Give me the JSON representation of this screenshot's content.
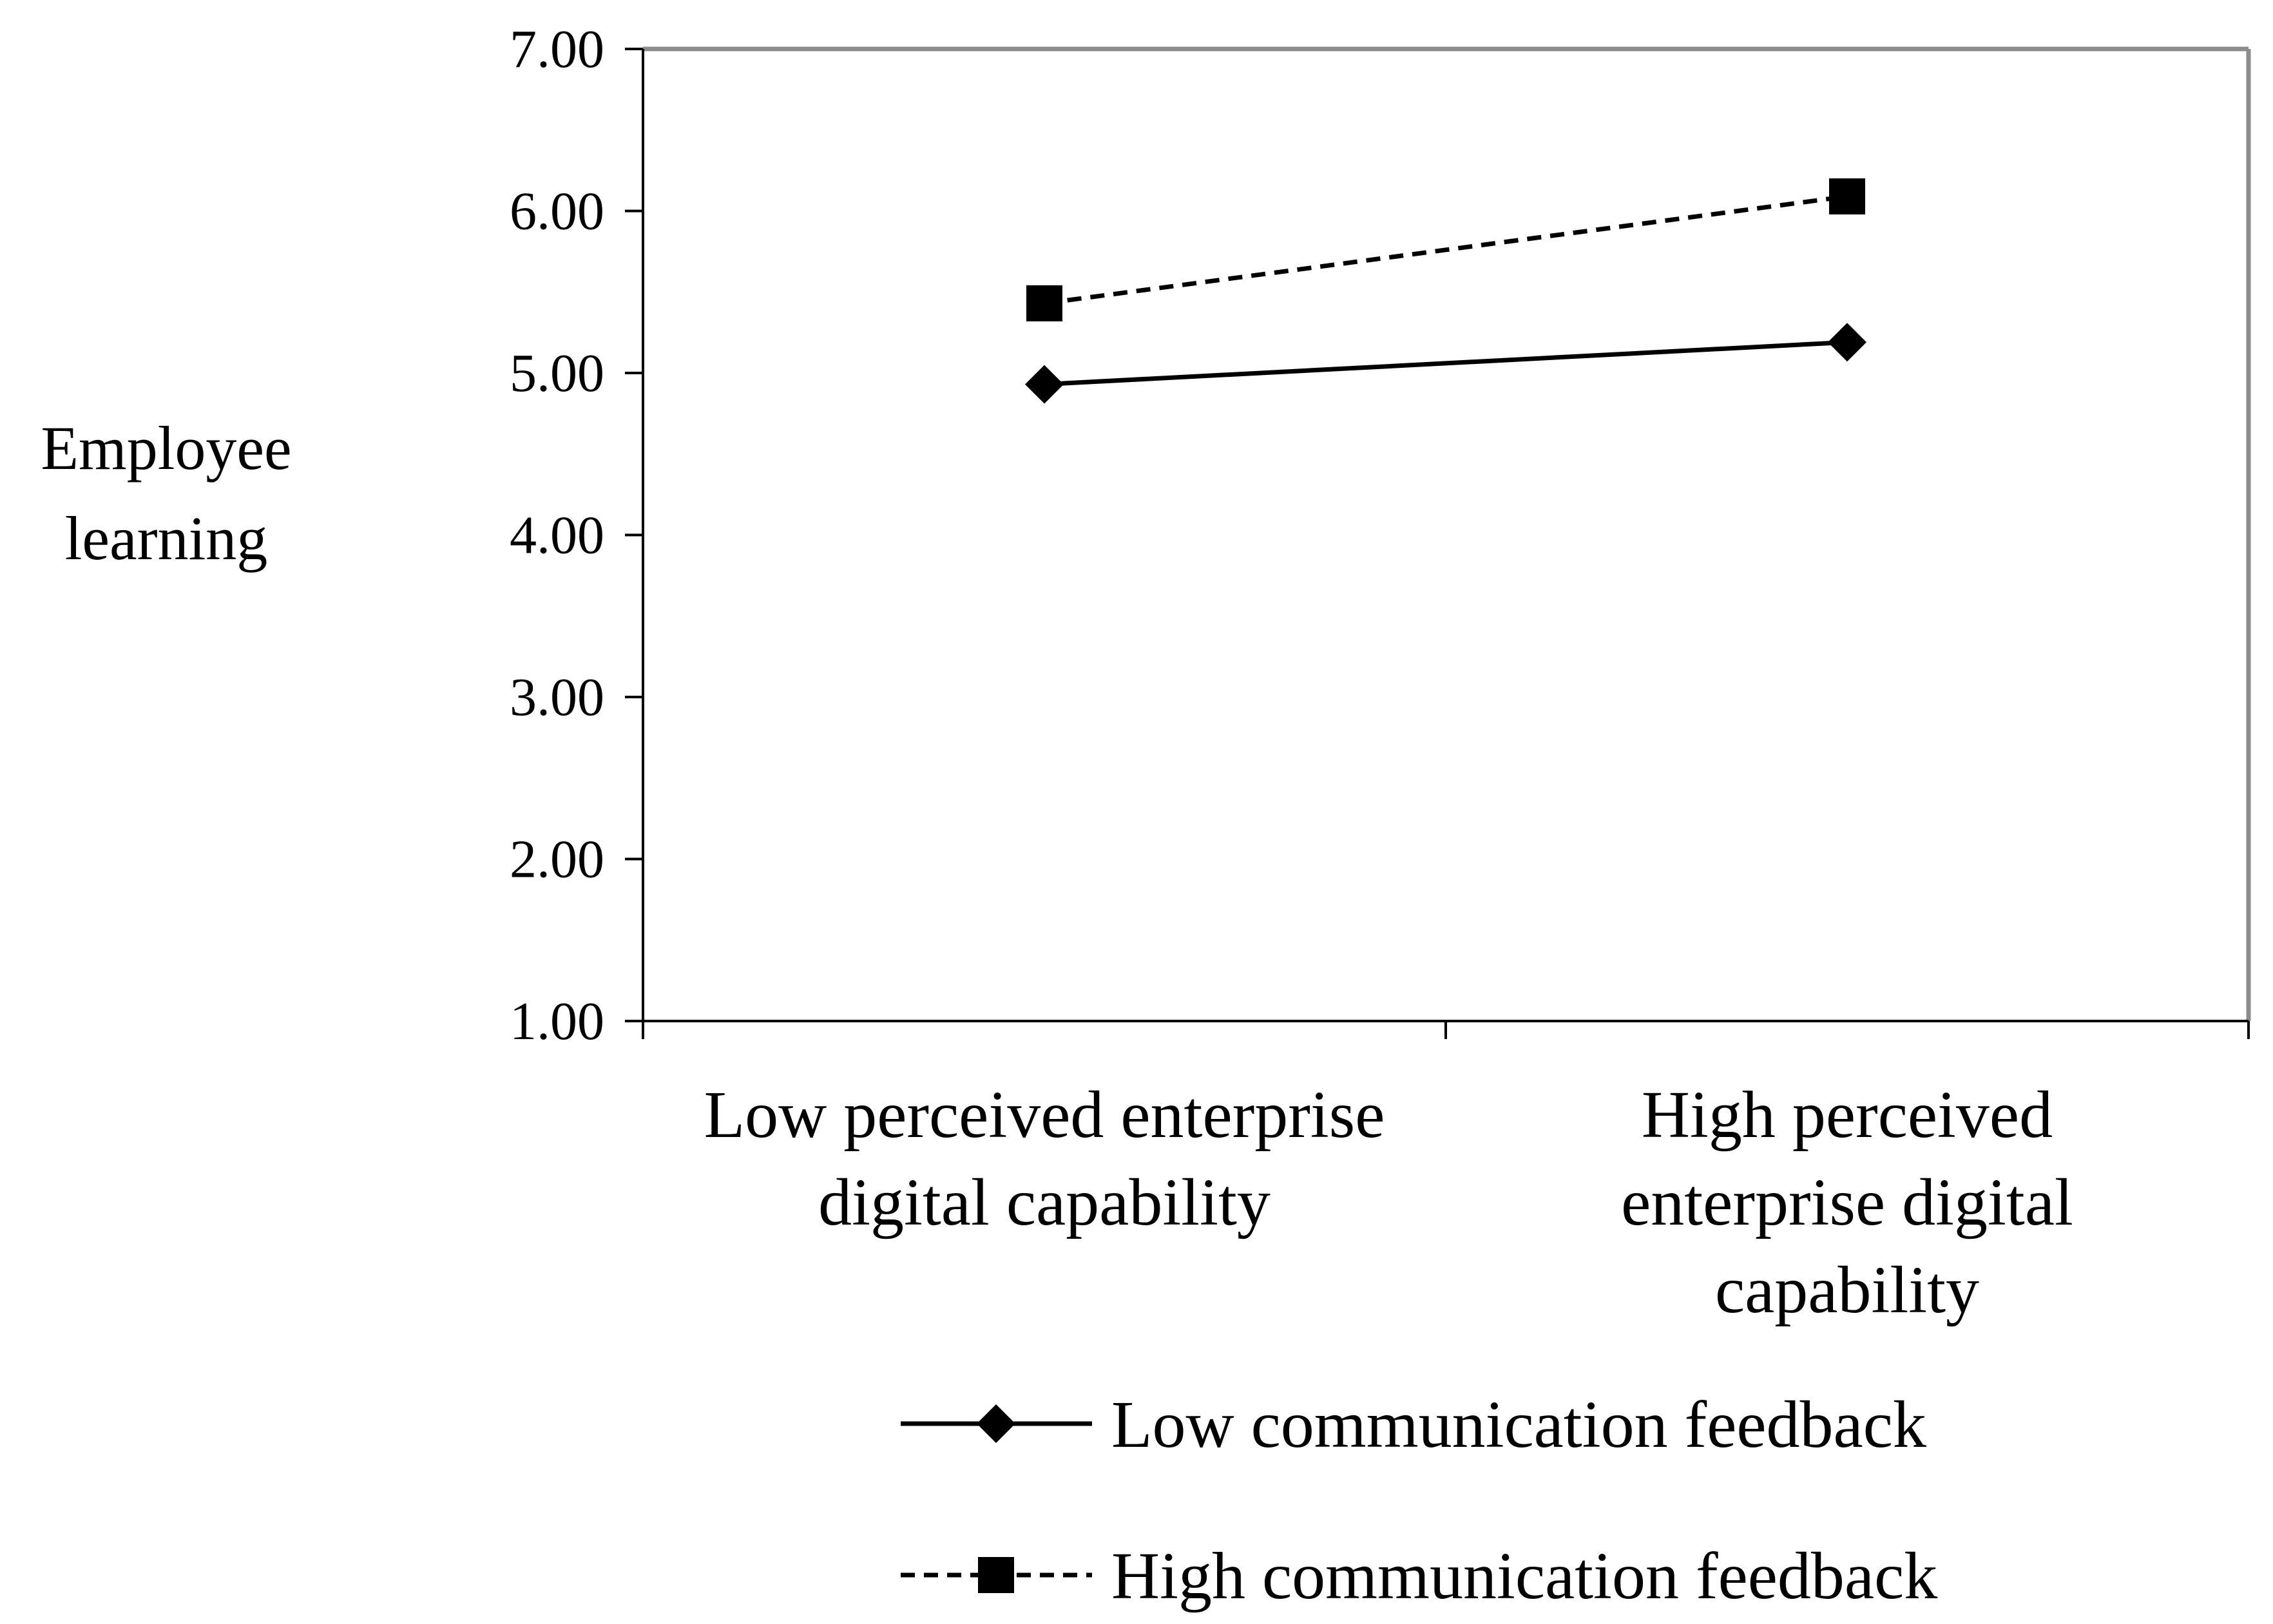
{
  "chart_data": {
    "type": "line",
    "title": "",
    "ylabel": [
      "Employee",
      "learning"
    ],
    "xlabel": "",
    "ylim": [
      1,
      7
    ],
    "yticks": [
      "1.00",
      "2.00",
      "3.00",
      "4.00",
      "5.00",
      "6.00",
      "7.00"
    ],
    "categories": [
      [
        "Low perceived enterprise",
        "digital capability"
      ],
      [
        "High perceived",
        "enterprise digital",
        "capability"
      ]
    ],
    "series": [
      {
        "name": "Low communication feedback",
        "values": [
          4.93,
          5.19
        ],
        "marker": "diamond",
        "dash": "solid"
      },
      {
        "name": "High communication feedback",
        "values": [
          5.43,
          6.09
        ],
        "marker": "square",
        "dash": "dashed"
      }
    ],
    "legend_position": "bottom",
    "grid": false,
    "colors": {
      "line": "#000000",
      "frame": "#8c8c8c"
    }
  }
}
